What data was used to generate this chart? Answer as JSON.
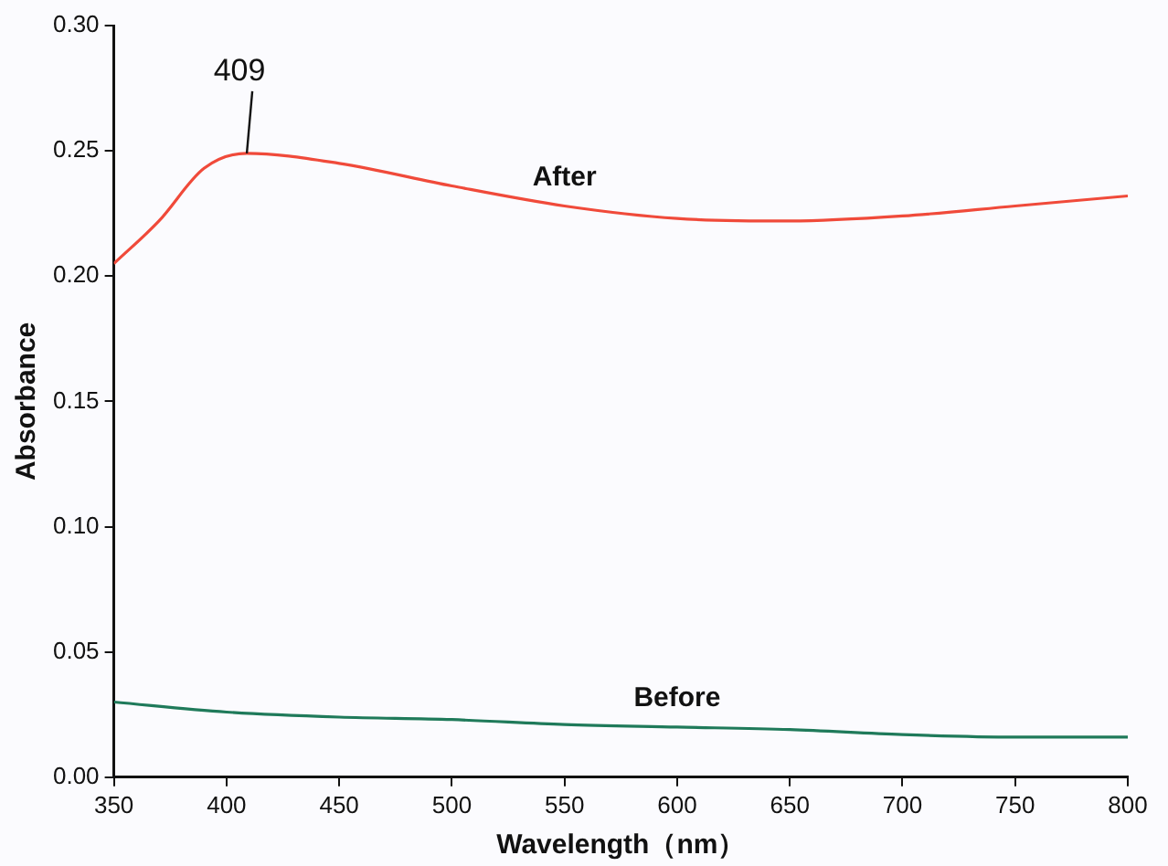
{
  "chart_data": {
    "type": "line",
    "xlabel": "Wavelength（nm）",
    "ylabel": "Absorbance",
    "xlim": [
      350,
      800
    ],
    "xticks": [
      350,
      400,
      450,
      500,
      550,
      600,
      650,
      700,
      750,
      800
    ],
    "ylim": [
      0,
      0.3
    ],
    "yticks": [
      {
        "value": 0,
        "label": "0.00"
      },
      {
        "value": 0.05,
        "label": "0.05"
      },
      {
        "value": 0.1,
        "label": "0.10"
      },
      {
        "value": 0.15,
        "label": "0.15"
      },
      {
        "value": 0.2,
        "label": "0.20"
      },
      {
        "value": 0.25,
        "label": "0.25"
      },
      {
        "value": 0.3,
        "label": "0.30"
      }
    ],
    "grid": false,
    "legend": false,
    "marker": "none",
    "line_style": "solid",
    "annotations": [
      {
        "text": "409",
        "x": 409,
        "y": 0.249
      }
    ],
    "series": [
      {
        "name": "After",
        "color": "#f04a3a",
        "x": [
          350,
          370,
          390,
          409,
          450,
          500,
          550,
          600,
          650,
          700,
          750,
          800
        ],
        "values": [
          0.205,
          0.222,
          0.243,
          0.249,
          0.245,
          0.236,
          0.228,
          0.223,
          0.222,
          0.224,
          0.228,
          0.232
        ]
      },
      {
        "name": "Before",
        "color": "#1f7a5a",
        "x": [
          350,
          400,
          450,
          500,
          550,
          600,
          650,
          700,
          750,
          800
        ],
        "values": [
          0.03,
          0.026,
          0.024,
          0.023,
          0.021,
          0.02,
          0.019,
          0.017,
          0.016,
          0.016
        ]
      }
    ]
  }
}
